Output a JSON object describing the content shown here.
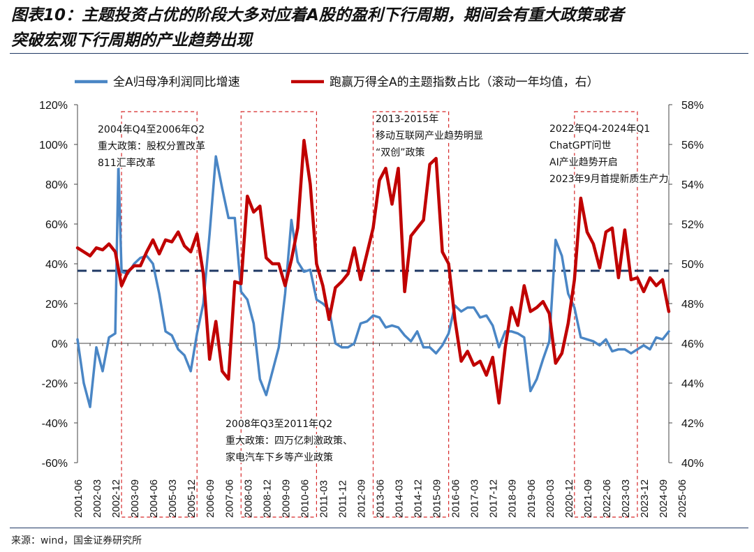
{
  "title_line1": "图表10：主题投资占优的阶段大多对应着A股的盈利下行周期，期间会有重大政策或者",
  "title_line2": "突破宏观下行周期的产业趋势出现",
  "source": "来源：wind，国金证券研究所",
  "colors": {
    "blue": "#4a86c5",
    "red": "#c00000",
    "navy": "#1f3864",
    "box": "#d62728"
  },
  "chart_data": {
    "type": "line",
    "series": [
      {
        "name": "全A归母净利润同比增速",
        "axis": "left",
        "color": "#4a86c5",
        "points": [
          [
            0,
            2
          ],
          [
            0.5,
            -20
          ],
          [
            1,
            -32
          ],
          [
            1.5,
            -2
          ],
          [
            2,
            -14
          ],
          [
            2.5,
            3
          ],
          [
            3,
            5
          ],
          [
            3.25,
            90
          ],
          [
            3.5,
            36
          ],
          [
            4,
            35
          ],
          [
            4.5,
            40
          ],
          [
            5,
            43
          ],
          [
            5.5,
            44
          ],
          [
            6,
            40
          ],
          [
            6.5,
            25
          ],
          [
            7,
            6
          ],
          [
            7.5,
            4
          ],
          [
            8,
            -3
          ],
          [
            8.5,
            -6
          ],
          [
            9,
            -14
          ],
          [
            9.5,
            5
          ],
          [
            10,
            20
          ],
          [
            10.5,
            55
          ],
          [
            11,
            94
          ],
          [
            11.5,
            78
          ],
          [
            12,
            63
          ],
          [
            12.5,
            63
          ],
          [
            13,
            26
          ],
          [
            13.5,
            22
          ],
          [
            14,
            10
          ],
          [
            14.5,
            -18
          ],
          [
            15,
            -26
          ],
          [
            15.5,
            -14
          ],
          [
            16,
            -2
          ],
          [
            16.5,
            25
          ],
          [
            17,
            62
          ],
          [
            17.5,
            41
          ],
          [
            18,
            36
          ],
          [
            18.5,
            37
          ],
          [
            19,
            22
          ],
          [
            19.5,
            20
          ],
          [
            20,
            17
          ],
          [
            20.5,
            0
          ],
          [
            21,
            -2
          ],
          [
            21.5,
            -2
          ],
          [
            22,
            0
          ],
          [
            22.5,
            10
          ],
          [
            23,
            11
          ],
          [
            23.5,
            14
          ],
          [
            24,
            13
          ],
          [
            24.5,
            8
          ],
          [
            25,
            9
          ],
          [
            25.5,
            8
          ],
          [
            26,
            4
          ],
          [
            26.5,
            1
          ],
          [
            27,
            6
          ],
          [
            27.5,
            -2
          ],
          [
            28,
            -2
          ],
          [
            28.5,
            -5
          ],
          [
            29,
            -1
          ],
          [
            29.5,
            5
          ],
          [
            30,
            19
          ],
          [
            30.5,
            16
          ],
          [
            31,
            18
          ],
          [
            31.5,
            18
          ],
          [
            32,
            13
          ],
          [
            32.5,
            14
          ],
          [
            33,
            9
          ],
          [
            33.5,
            -2
          ],
          [
            34,
            6
          ],
          [
            34.5,
            6
          ],
          [
            35,
            5
          ],
          [
            35.5,
            3
          ],
          [
            36,
            -24
          ],
          [
            36.5,
            -18
          ],
          [
            37,
            -8
          ],
          [
            37.5,
            1
          ],
          [
            38,
            52
          ],
          [
            38.5,
            44
          ],
          [
            39,
            25
          ],
          [
            39.5,
            18
          ],
          [
            40,
            3
          ],
          [
            40.5,
            2
          ],
          [
            41,
            1
          ],
          [
            41.5,
            -1
          ],
          [
            42,
            2
          ],
          [
            42.5,
            -4
          ],
          [
            43,
            -3
          ],
          [
            43.5,
            -3
          ],
          [
            44,
            -5
          ],
          [
            44.5,
            -3
          ],
          [
            45,
            -1
          ],
          [
            45.5,
            -3
          ],
          [
            46,
            3
          ],
          [
            46.5,
            2
          ],
          [
            47,
            6
          ]
        ]
      },
      {
        "name": "跑赢万得全A的主题指数占比（滚动一年均值，右）",
        "axis": "right",
        "color": "#c00000",
        "points": [
          [
            0,
            50.8
          ],
          [
            0.5,
            50.6
          ],
          [
            1,
            50.4
          ],
          [
            1.5,
            50.8
          ],
          [
            2,
            50.7
          ],
          [
            2.5,
            51
          ],
          [
            3,
            50.6
          ],
          [
            3.5,
            48.9
          ],
          [
            4,
            49.6
          ],
          [
            4.5,
            49.9
          ],
          [
            5,
            49.9
          ],
          [
            5.5,
            50.6
          ],
          [
            6,
            51.2
          ],
          [
            6.5,
            50.5
          ],
          [
            7,
            51.2
          ],
          [
            7.5,
            51.1
          ],
          [
            8,
            51.6
          ],
          [
            8.5,
            50.9
          ],
          [
            9,
            50.6
          ],
          [
            9.5,
            51.5
          ],
          [
            10,
            49.5
          ],
          [
            10.5,
            45.2
          ],
          [
            11,
            47.1
          ],
          [
            11.5,
            44.6
          ],
          [
            12,
            44.2
          ],
          [
            12.5,
            49.1
          ],
          [
            13,
            49
          ],
          [
            13.5,
            53.4
          ],
          [
            14,
            52.6
          ],
          [
            14.5,
            52.9
          ],
          [
            15,
            50.3
          ],
          [
            15.5,
            50
          ],
          [
            16,
            50
          ],
          [
            16.5,
            48.9
          ],
          [
            17,
            50.2
          ],
          [
            17.5,
            51.8
          ],
          [
            18,
            56.2
          ],
          [
            18.5,
            54
          ],
          [
            19,
            50
          ],
          [
            19.5,
            48.9
          ],
          [
            20,
            47.2
          ],
          [
            20.5,
            48.8
          ],
          [
            21,
            49.1
          ],
          [
            21.5,
            49.5
          ],
          [
            22,
            50.8
          ],
          [
            22.5,
            49.2
          ],
          [
            23,
            50.5
          ],
          [
            23.5,
            51.8
          ],
          [
            24,
            54.2
          ],
          [
            24.5,
            54.8
          ],
          [
            25,
            53
          ],
          [
            25.5,
            54.8
          ],
          [
            26,
            48.6
          ],
          [
            26.5,
            51.4
          ],
          [
            27,
            51.8
          ],
          [
            27.5,
            52.2
          ],
          [
            28,
            55
          ],
          [
            28.5,
            55.3
          ],
          [
            29,
            50.6
          ],
          [
            29.5,
            50
          ],
          [
            30,
            47.2
          ],
          [
            30.5,
            45.1
          ],
          [
            31,
            45.6
          ],
          [
            31.5,
            44.9
          ],
          [
            32,
            45.1
          ],
          [
            32.5,
            44.4
          ],
          [
            33,
            45.3
          ],
          [
            33.5,
            43
          ],
          [
            34,
            45.8
          ],
          [
            34.5,
            47.8
          ],
          [
            35,
            46.9
          ],
          [
            35.5,
            48.9
          ],
          [
            36,
            47.6
          ],
          [
            36.5,
            47.8
          ],
          [
            37,
            48.1
          ],
          [
            37.5,
            47.5
          ],
          [
            38,
            45
          ],
          [
            38.5,
            45.5
          ],
          [
            39,
            47
          ],
          [
            39.5,
            49.2
          ],
          [
            40,
            53.3
          ],
          [
            40.5,
            51.6
          ],
          [
            41,
            51
          ],
          [
            41.5,
            49.8
          ],
          [
            42,
            51.6
          ],
          [
            42.5,
            51.8
          ],
          [
            43,
            49.3
          ],
          [
            43.5,
            51.7
          ],
          [
            44,
            49.2
          ],
          [
            44.5,
            49.3
          ],
          [
            45,
            48.6
          ],
          [
            45.5,
            49.3
          ],
          [
            46,
            48.9
          ],
          [
            46.5,
            49.2
          ],
          [
            47,
            47.6
          ]
        ]
      }
    ],
    "reference_line": {
      "label": "dashed",
      "axis": "left",
      "value": 36.5
    },
    "x_tick_labels": [
      "2001-06",
      "2002-03",
      "2002-12",
      "2003-09",
      "2004-06",
      "2005-03",
      "2005-12",
      "2006-09",
      "2007-06",
      "2008-03",
      "2008-12",
      "2009-09",
      "2010-06",
      "2011-03",
      "2011-12",
      "2012-09",
      "2013-06",
      "2014-03",
      "2014-12",
      "2015-09",
      "2016-06",
      "2017-03",
      "2017-12",
      "2018-09",
      "2019-06",
      "2020-03",
      "2020-12",
      "2021-09",
      "2022-06",
      "2023-03",
      "2023-12",
      "2024-09",
      "2025-06"
    ],
    "y_left": {
      "min": -60,
      "max": 120,
      "ticks": [
        "-60%",
        "-40%",
        "-20%",
        "0%",
        "20%",
        "40%",
        "60%",
        "80%",
        "100%",
        "120%"
      ]
    },
    "y_right": {
      "min": 40,
      "max": 58,
      "ticks": [
        "40%",
        "42%",
        "44%",
        "46%",
        "48%",
        "50%",
        "52%",
        "54%",
        "56%",
        "58%"
      ]
    },
    "highlight_periods": [
      {
        "start": 3.5,
        "end": 9.5,
        "lines": [
          "2004年Q4至2006年Q2",
          "重大政策：股权分置改革",
          "811汇率改革"
        ],
        "label_pos": "top"
      },
      {
        "start": 13,
        "end": 19,
        "lines": [
          "2008年Q3至2011年Q2",
          "重大政策：四万亿刺激政策、",
          "家电汽车下乡等产业政策"
        ],
        "label_pos": "bottom"
      },
      {
        "start": 23.5,
        "end": 29.5,
        "lines": [
          "2013-2015年",
          "移动互联网产业趋势明显",
          "“双创”政策"
        ],
        "label_pos": "top"
      },
      {
        "start": 39.5,
        "end": 44.5,
        "lines": [
          "2022年Q4-2024年Q1",
          "ChatGPT问世",
          "AI产业趋势开启",
          "2023年9月首提新质生产力"
        ],
        "label_pos": "top"
      }
    ]
  }
}
